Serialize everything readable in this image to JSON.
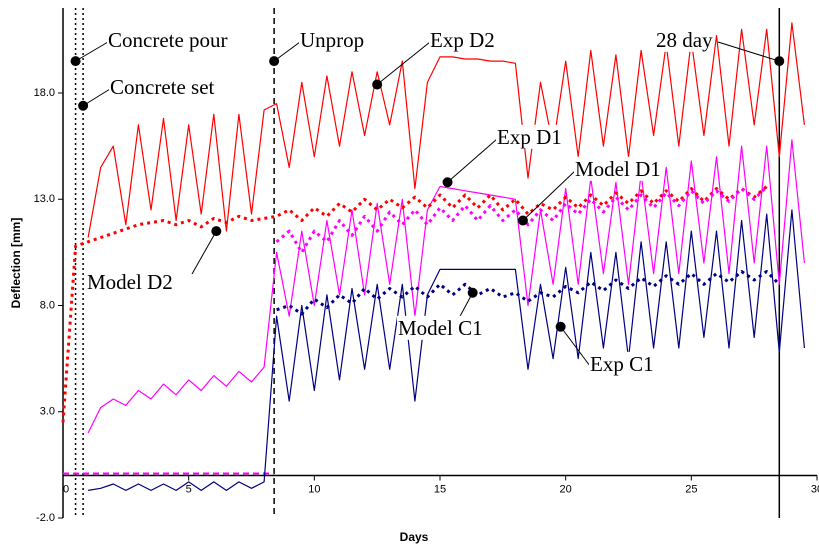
{
  "chart_data": {
    "type": "line",
    "x_label": "Days",
    "y_label": "Deflection [mm]",
    "xlim": [
      0,
      30
    ],
    "ylim": [
      -2,
      22
    ],
    "xticks": [
      0,
      5,
      10,
      15,
      20,
      25,
      30
    ],
    "yticks": [
      {
        "value": -2,
        "label": "-2.0"
      },
      {
        "value": 3,
        "label": "3.0"
      },
      {
        "value": 8,
        "label": "8.0"
      },
      {
        "value": 13,
        "label": "13.0"
      },
      {
        "value": 18,
        "label": "18.0"
      }
    ],
    "x": [
      0,
      0.5,
      1,
      1.5,
      2,
      2.5,
      3,
      3.5,
      4,
      4.5,
      5,
      5.5,
      6,
      6.5,
      7,
      7.5,
      8,
      8.5,
      9,
      9.5,
      10,
      10.5,
      11,
      11.5,
      12,
      12.5,
      13,
      13.5,
      14,
      14.5,
      15,
      15.5,
      16,
      16.5,
      17,
      17.5,
      18,
      18.5,
      19,
      19.5,
      20,
      20.5,
      21,
      21.5,
      22,
      22.5,
      23,
      23.5,
      24,
      24.5,
      25,
      25.5,
      26,
      26.5,
      27,
      27.5,
      28,
      28.5,
      29,
      29.5
    ],
    "series": [
      {
        "name": "Exp D2",
        "color": "#ff0000",
        "style": "solid",
        "values": [
          null,
          null,
          11.2,
          14.5,
          15.5,
          11.8,
          16.5,
          12.5,
          16.8,
          12,
          16.5,
          12.3,
          17,
          11.5,
          17,
          12.3,
          17.2,
          17.5,
          14.5,
          18.5,
          15,
          18.8,
          15.5,
          19,
          16,
          19,
          16.5,
          19.5,
          13.5,
          18.5,
          19.7,
          19.7,
          19.6,
          19.6,
          19.5,
          19.5,
          19.4,
          14,
          18.5,
          15.5,
          19.5,
          15,
          20,
          15.5,
          19.8,
          15,
          20,
          16,
          20.3,
          15.5,
          20.5,
          16,
          20.7,
          15.5,
          21,
          16.5,
          21,
          15,
          21.3,
          16.5
        ]
      },
      {
        "name": "Exp D1",
        "color": "#ff00ff",
        "style": "solid",
        "values": [
          null,
          null,
          2.0,
          3.2,
          3.6,
          3.3,
          4.0,
          3.6,
          4.3,
          3.8,
          4.5,
          4.0,
          4.7,
          4.2,
          4.9,
          4.4,
          5.1,
          10.5,
          7.5,
          11.5,
          8,
          12,
          8.5,
          12.5,
          8.5,
          12.8,
          9,
          13,
          7.5,
          12.5,
          13.6,
          13.5,
          13.4,
          13.3,
          13.2,
          13.1,
          13,
          8,
          12.5,
          9,
          13.5,
          9,
          14,
          9.5,
          13.8,
          9,
          14.2,
          9.5,
          14.5,
          9.5,
          14.8,
          10,
          15,
          9.5,
          15.5,
          10,
          15.5,
          9,
          15.8,
          10
        ]
      },
      {
        "name": "Exp C1",
        "color": "#000080",
        "style": "solid",
        "values": [
          null,
          null,
          -0.7,
          -0.6,
          -0.4,
          -0.7,
          -0.4,
          -0.7,
          -0.4,
          -0.7,
          -0.3,
          -0.7,
          -0.3,
          -0.7,
          -0.3,
          -0.6,
          -0.3,
          7.5,
          3.5,
          8,
          4,
          8.5,
          4.5,
          8.8,
          5,
          9,
          5,
          9,
          3.5,
          8.5,
          9.7,
          9.7,
          9.7,
          9.7,
          9.7,
          9.7,
          9.7,
          5,
          9,
          5.5,
          9.8,
          5.5,
          10.5,
          6,
          10.5,
          5.5,
          11,
          6,
          11,
          6,
          11.5,
          6.5,
          11.5,
          6,
          12,
          6.5,
          12.3,
          5.8,
          12.5,
          6
        ]
      },
      {
        "name": "Model D2",
        "color": "#ff0000",
        "style": "dotted",
        "values": [
          2.5,
          10.8,
          11,
          11.2,
          11.4,
          11.6,
          11.8,
          11.9,
          12.0,
          11.8,
          12.0,
          11.7,
          12.1,
          11.9,
          12.2,
          12.0,
          12.1,
          12.2,
          12.5,
          12.0,
          12.6,
          12.2,
          12.8,
          12.4,
          13,
          12.5,
          13,
          12.6,
          13.1,
          12.6,
          13.2,
          12.6,
          13.2,
          12.6,
          13.2,
          12.5,
          13.0,
          12.3,
          12.8,
          12.5,
          13.1,
          12.6,
          13.2,
          12.7,
          13.3,
          12.8,
          13.4,
          12.8,
          13.4,
          12.9,
          13.5,
          12.9,
          13.5,
          13,
          13.5,
          13.1,
          13.6,
          null,
          null,
          null
        ]
      },
      {
        "name": "Model D1",
        "color": "#ff00ff",
        "style": "dotted",
        "values": [
          null,
          null,
          null,
          null,
          null,
          null,
          null,
          null,
          null,
          null,
          null,
          null,
          null,
          null,
          null,
          null,
          null,
          11,
          11.5,
          10.5,
          11.5,
          11,
          12,
          11.3,
          12.2,
          11.5,
          12.4,
          11.8,
          12.5,
          11.8,
          12.6,
          12,
          12.7,
          12,
          12.7,
          12,
          12.5,
          11.8,
          12.5,
          12,
          12.8,
          12.3,
          13,
          12.4,
          13.1,
          12.5,
          13.2,
          12.6,
          13.3,
          12.7,
          13.4,
          12.8,
          13.4,
          12.9,
          13.5,
          13,
          13.6,
          null,
          null,
          null
        ]
      },
      {
        "name": "Model C1",
        "color": "#000080",
        "style": "dotted",
        "values": [
          null,
          null,
          null,
          null,
          null,
          null,
          null,
          null,
          null,
          null,
          null,
          null,
          null,
          null,
          null,
          null,
          null,
          7.8,
          8.0,
          7.6,
          8.3,
          7.9,
          8.5,
          8.1,
          8.8,
          8.3,
          8.8,
          8.4,
          8.9,
          8.4,
          9.0,
          8.5,
          9.0,
          8.5,
          8.8,
          8.4,
          8.6,
          8.2,
          8.6,
          8.4,
          8.9,
          8.6,
          9.1,
          8.7,
          9.2,
          8.8,
          9.3,
          8.9,
          9.4,
          9.0,
          9.5,
          9.0,
          9.5,
          9.1,
          9.6,
          9.2,
          9.6,
          9.0,
          null,
          null
        ]
      }
    ],
    "annotations": [
      {
        "text": "Concrete pour",
        "x": 0.5,
        "y": 19.5,
        "line": "dotted"
      },
      {
        "text": "Concrete set",
        "x": 0.8,
        "y": 17.4,
        "line": "dotted"
      },
      {
        "text": "Unprop",
        "x": 8.4,
        "y": 19.5,
        "line": "dashed"
      },
      {
        "text": "28 day",
        "x": 28.5,
        "y": 19.5,
        "line": "solid"
      }
    ]
  }
}
